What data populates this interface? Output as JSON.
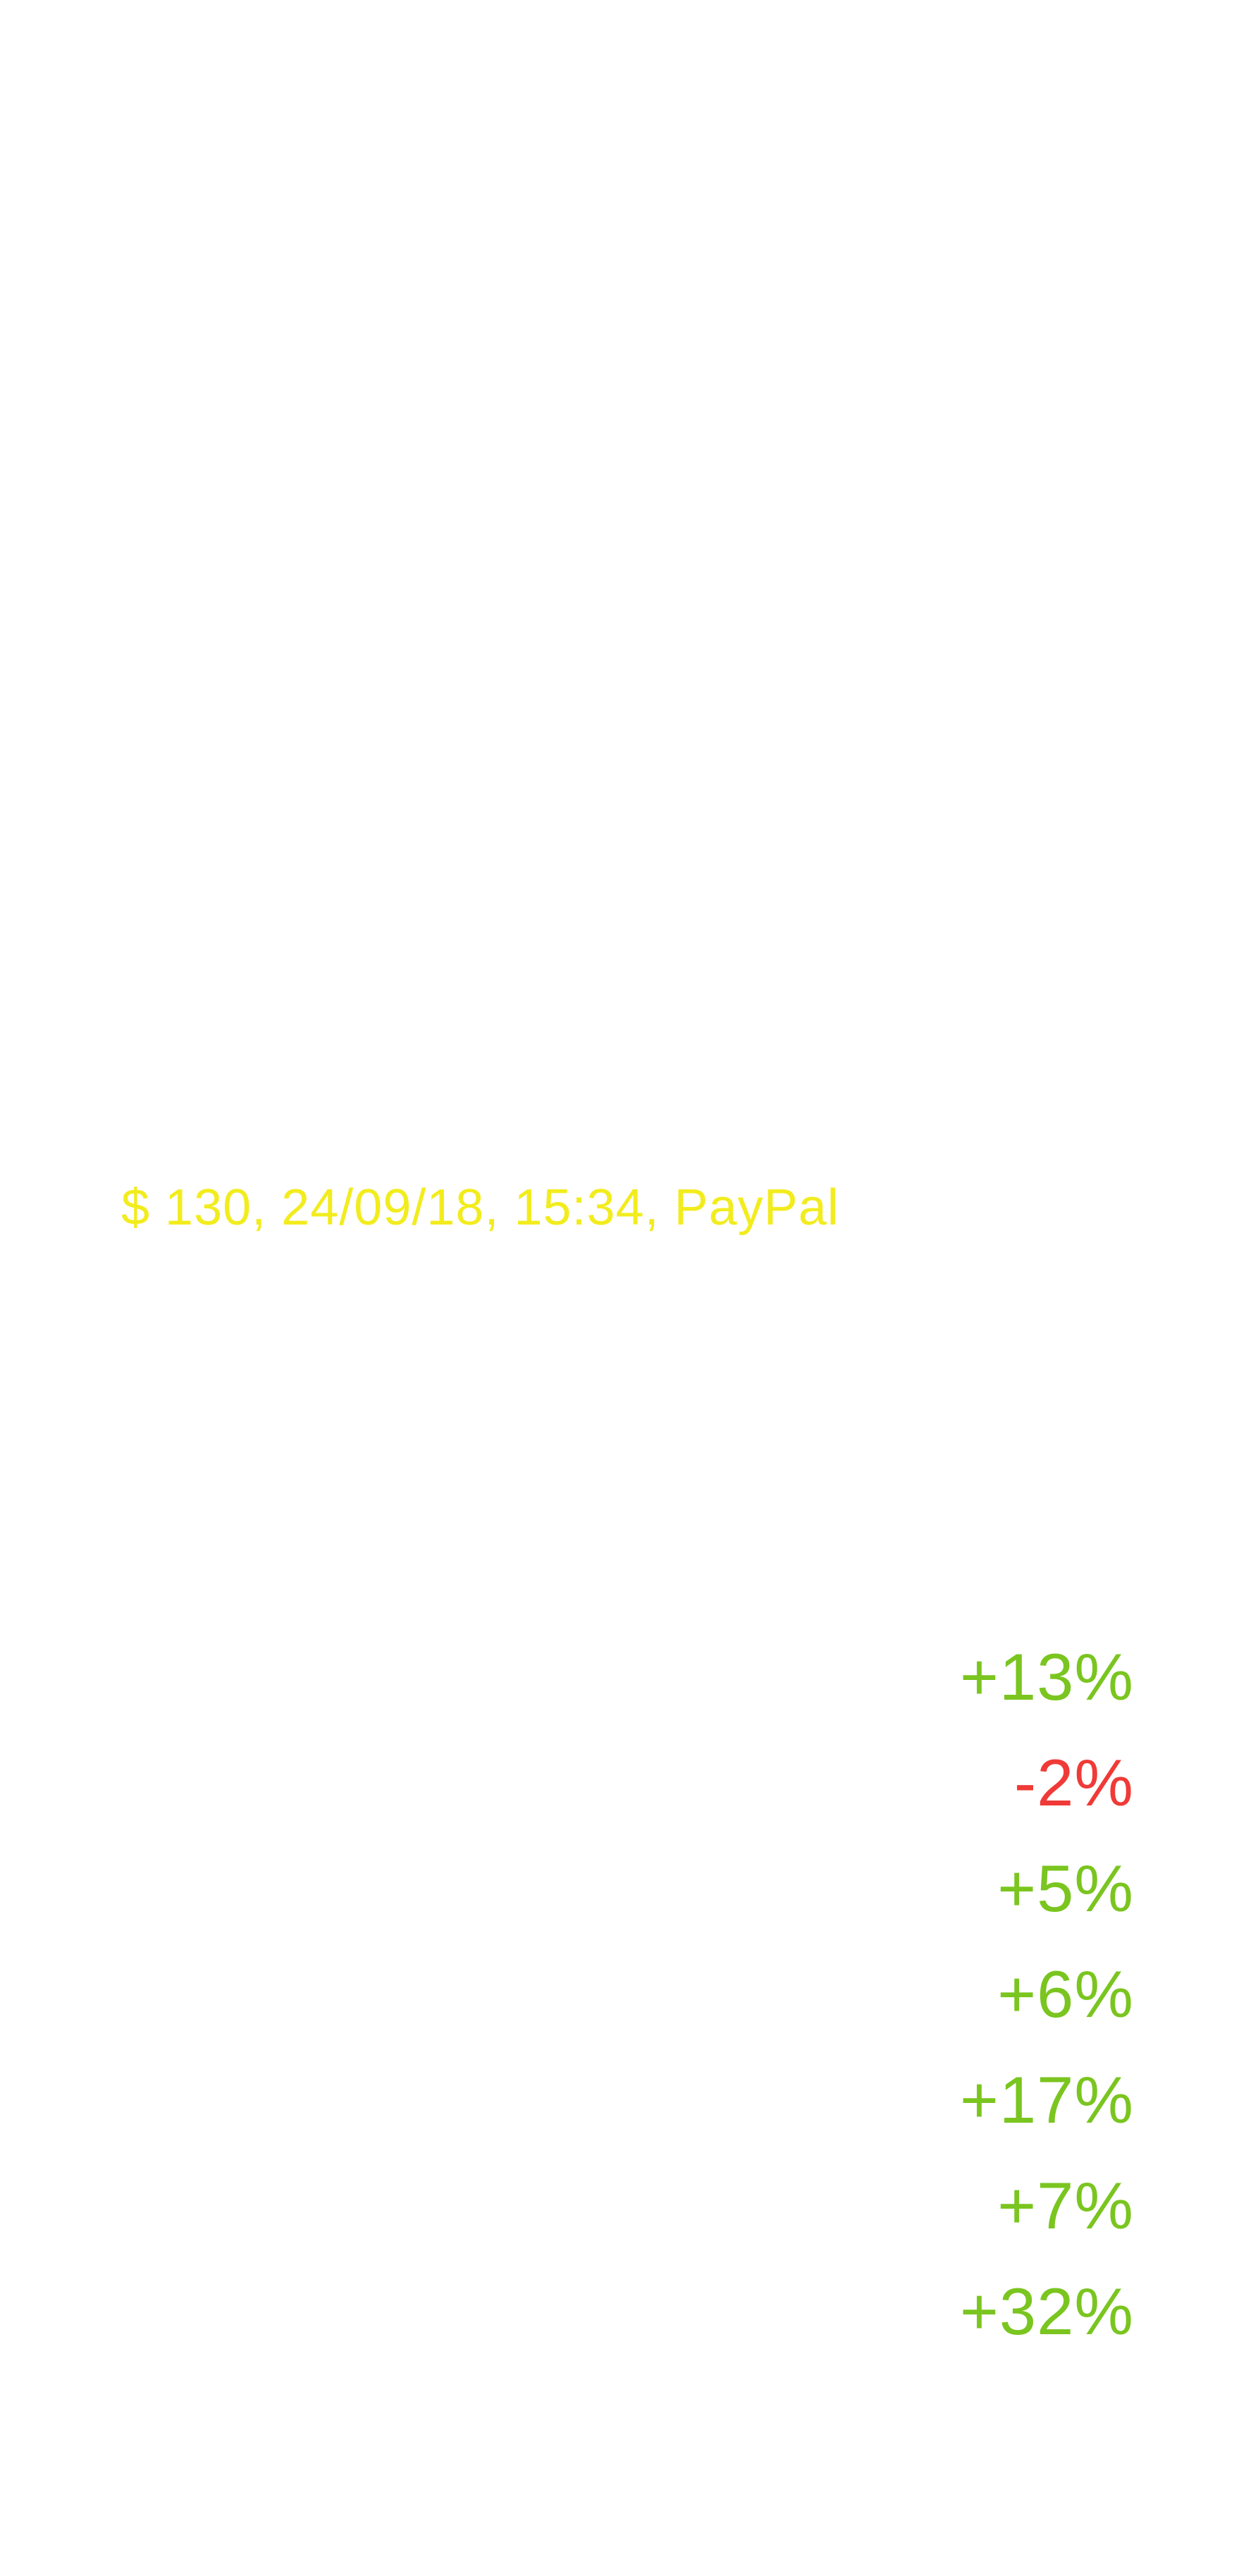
{
  "transaction": {
    "text": "$ 130, 24/09/18, 15:34, PayPal",
    "color": "#f2ec1e"
  },
  "colors": {
    "positive": "#7ac51f",
    "negative": "#f03a37"
  },
  "changes": [
    {
      "label": "+13%",
      "trend": "positive"
    },
    {
      "label": "-2%",
      "trend": "negative"
    },
    {
      "label": "+5%",
      "trend": "positive"
    },
    {
      "label": "+6%",
      "trend": "positive"
    },
    {
      "label": "+17%",
      "trend": "positive"
    },
    {
      "label": "+7%",
      "trend": "positive"
    },
    {
      "label": "+32%",
      "trend": "positive"
    }
  ]
}
